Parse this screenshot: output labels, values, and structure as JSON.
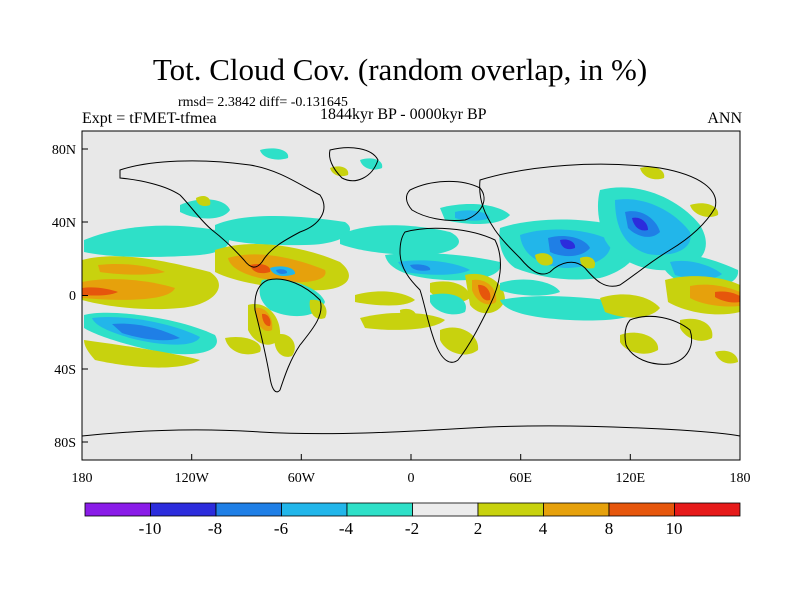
{
  "header": {
    "title": "Tot. Cloud Cov. (random overlap, in %)",
    "stats": "rmsd= 2.3842 diff= -0.131645",
    "period": "1844kyr BP - 0000kyr BP",
    "experiment": "Expt = tFMET-tfmea",
    "season": "ANN"
  },
  "map": {
    "x_ticks": [
      "180",
      "120W",
      "60W",
      "0",
      "60E",
      "120E",
      "180"
    ],
    "y_ticks": [
      "80N",
      "40N",
      "0",
      "40S",
      "80S"
    ],
    "background_color": "#e8e8e8",
    "coastline_color": "#000000"
  },
  "colorbar": {
    "labels": [
      "-10",
      "-8",
      "-6",
      "-4",
      "-2",
      "2",
      "4",
      "8",
      "10"
    ],
    "colors": [
      "#8a1ce8",
      "#2c2cdc",
      "#1f7fe6",
      "#22b6ea",
      "#2ee0c8",
      "#ececec",
      "#c8d20e",
      "#e6a10c",
      "#e6560c",
      "#e61a1a"
    ]
  }
}
